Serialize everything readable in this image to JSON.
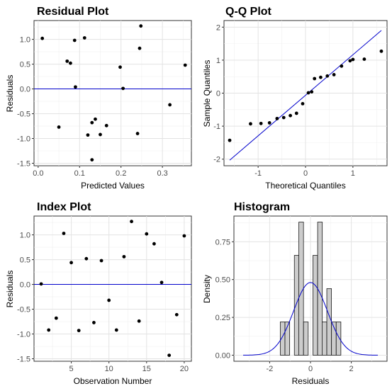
{
  "chart_data": [
    {
      "type": "scatter",
      "title": "Residual Plot",
      "xlabel": "Predicted Values",
      "ylabel": "Residuals",
      "xlim": [
        -0.01,
        0.37
      ],
      "ylim": [
        -1.55,
        1.38
      ],
      "xticks": [
        0.0,
        0.1,
        0.2,
        0.3
      ],
      "xtick_labels": [
        "0.0",
        "0.1",
        "0.2",
        "0.3"
      ],
      "yticks": [
        -1.5,
        -1.0,
        -0.5,
        0.0,
        0.5,
        1.0
      ],
      "ytick_labels": [
        "-1.5",
        "-1.0",
        "-0.5",
        "0.0",
        "0.5",
        "1.0"
      ],
      "grid": true,
      "hline": 0,
      "line_color": "#0000cc",
      "points": [
        [
          0.01,
          1.02
        ],
        [
          0.05,
          -0.77
        ],
        [
          0.07,
          0.56
        ],
        [
          0.078,
          0.52
        ],
        [
          0.088,
          0.98
        ],
        [
          0.09,
          0.04
        ],
        [
          0.112,
          1.03
        ],
        [
          0.12,
          -0.93
        ],
        [
          0.13,
          -1.43
        ],
        [
          0.13,
          -0.68
        ],
        [
          0.138,
          -0.61
        ],
        [
          0.15,
          -0.92
        ],
        [
          0.165,
          -0.74
        ],
        [
          0.198,
          0.44
        ],
        [
          0.205,
          0.01
        ],
        [
          0.24,
          -0.9
        ],
        [
          0.245,
          0.82
        ],
        [
          0.248,
          1.27
        ],
        [
          0.318,
          -0.32
        ],
        [
          0.355,
          0.48
        ]
      ]
    },
    {
      "type": "scatter",
      "title": "Q-Q Plot",
      "xlabel": "Theoretical Quantiles",
      "ylabel": "Sample Quantiles",
      "xlim": [
        -1.72,
        1.72
      ],
      "ylim": [
        -2.2,
        2.2
      ],
      "xticks": [
        -1,
        0,
        1
      ],
      "xtick_labels": [
        "-1",
        "0",
        "1"
      ],
      "yticks": [
        -2,
        -1,
        0,
        1,
        2
      ],
      "ytick_labels": [
        "-2",
        "-1",
        "0",
        "1",
        "2"
      ],
      "grid": true,
      "line_color": "#0000cc",
      "reference_line": [
        [
          -1.6,
          -2.03
        ],
        [
          1.6,
          1.9
        ]
      ],
      "points": [
        [
          -1.6,
          -1.43
        ],
        [
          -1.16,
          -0.93
        ],
        [
          -0.94,
          -0.92
        ],
        [
          -0.76,
          -0.9
        ],
        [
          -0.6,
          -0.77
        ],
        [
          -0.46,
          -0.74
        ],
        [
          -0.32,
          -0.68
        ],
        [
          -0.19,
          -0.61
        ],
        [
          -0.06,
          -0.32
        ],
        [
          0.06,
          0.01
        ],
        [
          0.13,
          0.04
        ],
        [
          0.19,
          0.44
        ],
        [
          0.32,
          0.48
        ],
        [
          0.46,
          0.52
        ],
        [
          0.6,
          0.56
        ],
        [
          0.76,
          0.82
        ],
        [
          0.94,
          0.98
        ],
        [
          1.0,
          1.02
        ],
        [
          1.24,
          1.03
        ],
        [
          1.6,
          1.27
        ]
      ]
    },
    {
      "type": "scatter",
      "title": "Index Plot",
      "xlabel": "Observation Number",
      "ylabel": "Residuals",
      "xlim": [
        0.05,
        20.95
      ],
      "ylim": [
        -1.55,
        1.38
      ],
      "xticks": [
        5,
        10,
        15,
        20
      ],
      "xtick_labels": [
        "5",
        "10",
        "15",
        "20"
      ],
      "yticks": [
        -1.5,
        -1.0,
        -0.5,
        0.0,
        0.5,
        1.0
      ],
      "ytick_labels": [
        "-1.5",
        "-1.0",
        "-0.5",
        "0.0",
        "0.5",
        "1.0"
      ],
      "grid": true,
      "hline": 0,
      "line_color": "#0000cc",
      "points": [
        [
          1,
          0.01
        ],
        [
          2,
          -0.92
        ],
        [
          3,
          -0.68
        ],
        [
          4,
          1.03
        ],
        [
          5,
          0.44
        ],
        [
          6,
          -0.93
        ],
        [
          7,
          0.52
        ],
        [
          8,
          -0.77
        ],
        [
          9,
          0.48
        ],
        [
          10,
          -0.32
        ],
        [
          11,
          -0.92
        ],
        [
          12,
          0.56
        ],
        [
          13,
          1.27
        ],
        [
          14,
          -0.74
        ],
        [
          15,
          1.02
        ],
        [
          16,
          0.82
        ],
        [
          17,
          0.04
        ],
        [
          18,
          -1.43
        ],
        [
          19,
          -0.61
        ],
        [
          20,
          0.98
        ]
      ]
    },
    {
      "type": "bar",
      "title": "Histogram",
      "xlabel": "Residuals",
      "ylabel": "Density",
      "xlim": [
        -3.75,
        3.75
      ],
      "ylim": [
        -0.04,
        0.92
      ],
      "xticks": [
        -2,
        0,
        2
      ],
      "xtick_labels": [
        "-2",
        "0",
        "2"
      ],
      "yticks": [
        0.0,
        0.25,
        0.5,
        0.75
      ],
      "ytick_labels": [
        "0.00",
        "0.25",
        "0.50",
        "0.75"
      ],
      "grid": true,
      "bin_width": 0.228,
      "bar_fill": "#cccccc",
      "bar_stroke": "#1a1a1a",
      "bins": [
        {
          "left": -1.48,
          "density": 0.22
        },
        {
          "left": -1.25,
          "density": 0.22
        },
        {
          "left": -1.02,
          "density": 0.0
        },
        {
          "left": -0.79,
          "density": 0.66
        },
        {
          "left": -0.57,
          "density": 0.88
        },
        {
          "left": -0.34,
          "density": 0.22
        },
        {
          "left": -0.11,
          "density": 0.0
        },
        {
          "left": 0.12,
          "density": 0.66
        },
        {
          "left": 0.35,
          "density": 0.88
        },
        {
          "left": 0.57,
          "density": 0.22
        },
        {
          "left": 0.8,
          "density": 0.44
        },
        {
          "left": 1.03,
          "density": 0.22
        },
        {
          "left": 1.26,
          "density": 0.22
        }
      ],
      "density_curve": {
        "mean": 0.0,
        "sd": 0.83,
        "from": -3.3,
        "to": 3.3
      },
      "line_color": "#0000cc"
    }
  ]
}
